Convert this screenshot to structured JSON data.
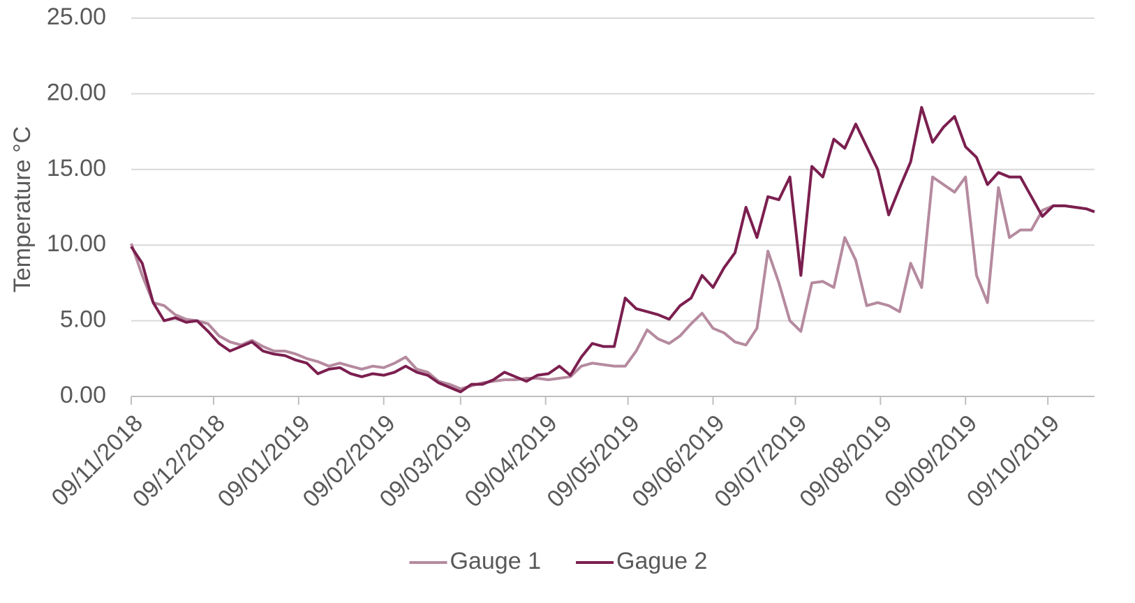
{
  "chart_data": {
    "type": "line",
    "y_label": "Temperature °C",
    "x": [
      "09/11/2018",
      "13/11/2018",
      "17/11/2018",
      "21/11/2018",
      "25/11/2018",
      "29/11/2018",
      "03/12/2018",
      "07/12/2018",
      "11/12/2018",
      "15/12/2018",
      "19/12/2018",
      "23/12/2018",
      "27/12/2018",
      "31/12/2018",
      "04/01/2019",
      "08/01/2019",
      "12/01/2019",
      "16/01/2019",
      "20/01/2019",
      "24/01/2019",
      "28/01/2019",
      "01/02/2019",
      "05/02/2019",
      "09/02/2019",
      "13/02/2019",
      "17/02/2019",
      "21/02/2019",
      "25/02/2019",
      "01/03/2019",
      "05/03/2019",
      "09/03/2019",
      "13/03/2019",
      "17/03/2019",
      "21/03/2019",
      "25/03/2019",
      "29/03/2019",
      "02/04/2019",
      "06/04/2019",
      "10/04/2019",
      "14/04/2019",
      "18/04/2019",
      "22/04/2019",
      "26/04/2019",
      "30/04/2019",
      "04/05/2019",
      "08/05/2019",
      "12/05/2019",
      "16/05/2019",
      "20/05/2019",
      "24/05/2019",
      "28/05/2019",
      "01/06/2019",
      "05/06/2019",
      "09/06/2019",
      "13/06/2019",
      "17/06/2019",
      "21/06/2019",
      "25/06/2019",
      "29/06/2019",
      "03/07/2019",
      "07/07/2019",
      "11/07/2019",
      "15/07/2019",
      "19/07/2019",
      "23/07/2019",
      "27/07/2019",
      "31/07/2019",
      "04/08/2019",
      "08/08/2019",
      "12/08/2019",
      "16/08/2019",
      "20/08/2019",
      "24/08/2019",
      "28/08/2019",
      "01/09/2019",
      "05/09/2019",
      "09/09/2019",
      "13/09/2019",
      "17/09/2019",
      "21/09/2019",
      "25/09/2019",
      "29/09/2019",
      "03/10/2019",
      "07/10/2019",
      "11/10/2019",
      "15/10/2019",
      "19/10/2019",
      "23/10/2019",
      "26/10/2019"
    ],
    "series": [
      {
        "name": "Gauge 1",
        "color": "#b58a9f",
        "values": [
          10.1,
          8.0,
          6.2,
          6.0,
          5.4,
          5.1,
          5.0,
          4.8,
          4.0,
          3.6,
          3.4,
          3.7,
          3.3,
          3.0,
          3.0,
          2.8,
          2.5,
          2.3,
          2.0,
          2.2,
          2.0,
          1.8,
          2.0,
          1.9,
          2.2,
          2.6,
          1.8,
          1.6,
          1.0,
          0.8,
          0.5,
          0.7,
          0.9,
          1.0,
          1.1,
          1.1,
          1.2,
          1.2,
          1.1,
          1.2,
          1.3,
          2.0,
          2.2,
          2.1,
          2.0,
          2.0,
          3.0,
          4.4,
          3.8,
          3.5,
          4.0,
          4.8,
          5.5,
          4.5,
          4.2,
          3.6,
          3.4,
          4.5,
          9.6,
          7.5,
          5.0,
          4.3,
          7.5,
          7.6,
          7.2,
          10.5,
          9.0,
          6.0,
          6.2,
          6.0,
          5.6,
          8.8,
          7.2,
          14.5,
          14.0,
          13.5,
          14.5,
          8.0,
          6.2,
          13.8,
          10.5,
          11.0,
          11.0,
          12.3,
          12.6,
          12.6,
          12.5,
          12.4,
          12.2
        ]
      },
      {
        "name": "Gague 2",
        "color": "#7b1f4f",
        "values": [
          9.9,
          8.8,
          6.2,
          5.0,
          5.2,
          4.9,
          5.0,
          4.3,
          3.5,
          3.0,
          3.3,
          3.6,
          3.0,
          2.8,
          2.7,
          2.4,
          2.2,
          1.5,
          1.8,
          1.9,
          1.5,
          1.3,
          1.5,
          1.4,
          1.6,
          2.0,
          1.6,
          1.4,
          0.9,
          0.6,
          0.3,
          0.8,
          0.8,
          1.1,
          1.6,
          1.3,
          1.0,
          1.4,
          1.5,
          2.0,
          1.4,
          2.6,
          3.5,
          3.3,
          3.3,
          6.5,
          5.8,
          5.6,
          5.4,
          5.1,
          6.0,
          6.5,
          8.0,
          7.2,
          8.5,
          9.5,
          12.5,
          10.5,
          13.2,
          13.0,
          14.5,
          8.0,
          15.2,
          14.5,
          17.0,
          16.4,
          18.0,
          16.5,
          15.0,
          12.0,
          13.8,
          15.5,
          19.1,
          16.8,
          17.8,
          18.5,
          16.5,
          15.8,
          14.0,
          14.8,
          14.5,
          14.5,
          13.2,
          11.9,
          12.6,
          12.6,
          12.5,
          12.4,
          12.2
        ]
      }
    ],
    "xlim": [
      "09/11/2018",
      "26/10/2019"
    ],
    "xticks": [
      "09/11/2018",
      "09/12/2018",
      "09/01/2019",
      "09/02/2019",
      "09/03/2019",
      "09/04/2019",
      "09/05/2019",
      "09/06/2019",
      "09/07/2019",
      "09/08/2019",
      "09/09/2019",
      "09/10/2019"
    ],
    "ylim": [
      0,
      25
    ],
    "yticks": [
      {
        "value": 0,
        "label": "0.00"
      },
      {
        "value": 5,
        "label": "5.00"
      },
      {
        "value": 10,
        "label": "10.00"
      },
      {
        "value": 15,
        "label": "15.00"
      },
      {
        "value": 20,
        "label": "20.00"
      },
      {
        "value": 25,
        "label": "25.00"
      }
    ],
    "grid": true,
    "legend": "bottom"
  }
}
